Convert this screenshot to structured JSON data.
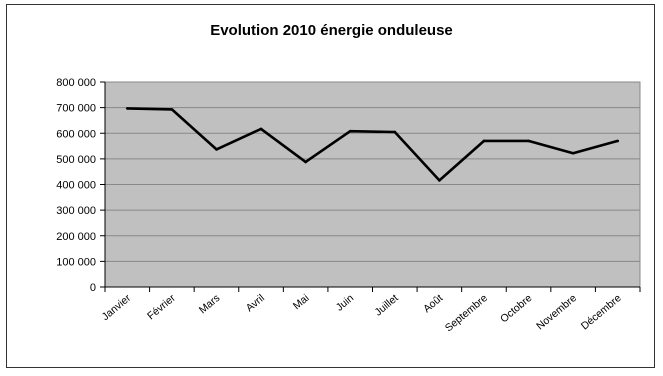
{
  "chart_data": {
    "type": "line",
    "title": "Evolution 2010  énergie onduleuse",
    "xlabel": "",
    "ylabel": "",
    "categories": [
      "Janvier",
      "Février",
      "Mars",
      "Avril",
      "Mai",
      "Juin",
      "Juillet",
      "Août",
      "Septembre",
      "Octobre",
      "Novembre",
      "Décembre"
    ],
    "series": [
      {
        "values": [
          697000,
          693000,
          537000,
          617000,
          488000,
          608000,
          605000,
          416000,
          570000,
          570000,
          522000,
          570000
        ]
      }
    ],
    "ylim": [
      0,
      800000
    ],
    "yticks": [
      0,
      100000,
      200000,
      300000,
      400000,
      500000,
      600000,
      700000,
      800000
    ],
    "ytick_labels": [
      "0",
      "100 000",
      "200 000",
      "300 000",
      "400 000",
      "500 000",
      "600 000",
      "700 000",
      "800 000"
    ],
    "grid": true,
    "plot_background": "#c0c0c0",
    "line_color": "#000000",
    "gridline_color": "#888888"
  }
}
